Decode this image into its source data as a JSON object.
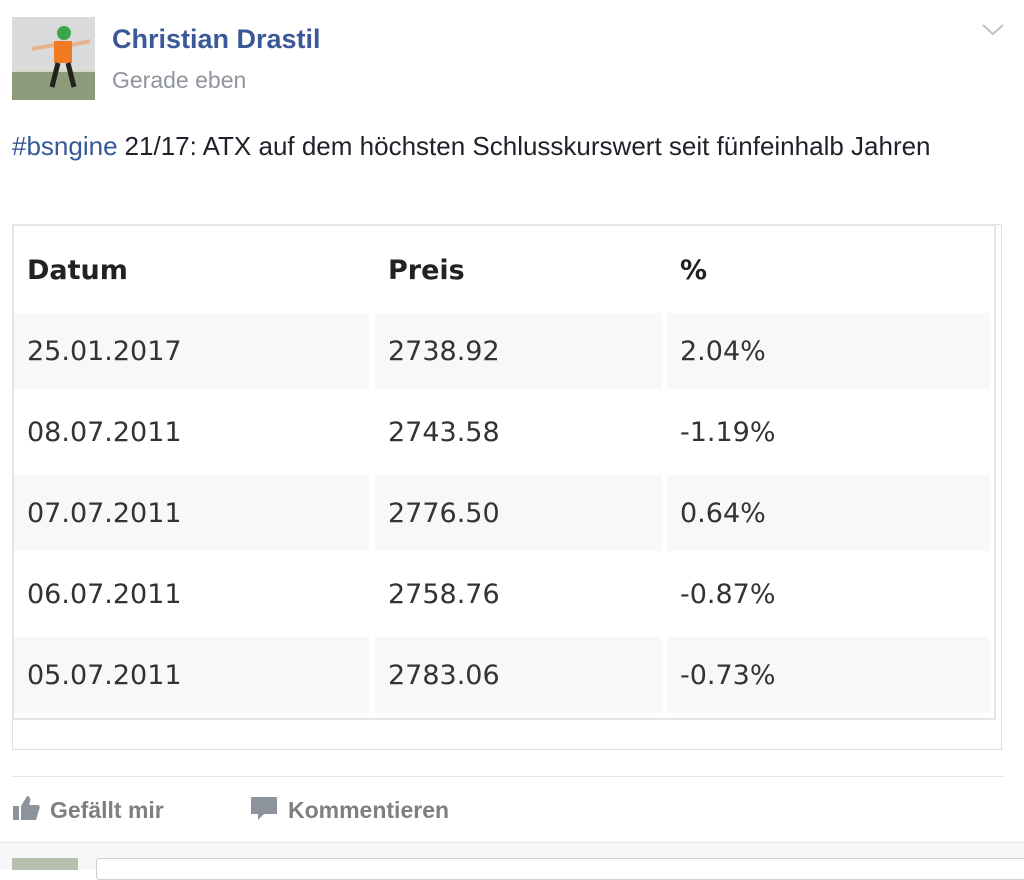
{
  "post": {
    "author": "Christian Drastil",
    "time": "Gerade eben",
    "hashtag": "#bsngine",
    "text": "21/17: ATX auf dem höchsten Schlusskurswert seit fünfeinhalb Jahren"
  },
  "table": {
    "header": [
      "Datum",
      "Preis",
      "%"
    ],
    "rows": [
      [
        "25.01.2017",
        "2738.92",
        "2.04%"
      ],
      [
        "08.07.2011",
        "2743.58",
        "-1.19%"
      ],
      [
        "07.07.2011",
        "2776.50",
        "0.64%"
      ],
      [
        "06.07.2011",
        "2758.76",
        "-0.87%"
      ],
      [
        "05.07.2011",
        "2783.06",
        "-0.73%"
      ]
    ]
  },
  "actions": {
    "like": "Gefällt mir",
    "comment": "Kommentieren"
  }
}
